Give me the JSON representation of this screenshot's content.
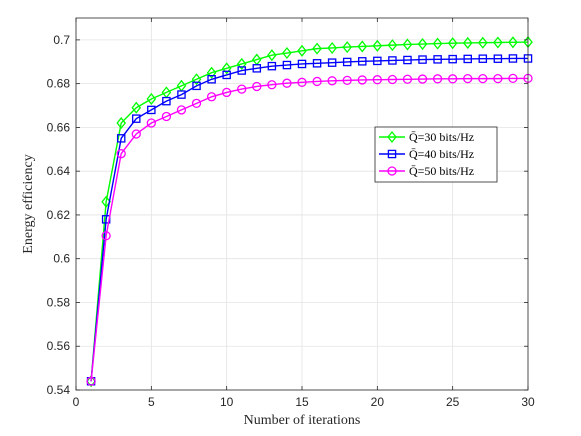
{
  "chart_data": {
    "type": "line",
    "xlabel": "Number of iterations",
    "ylabel": "Energy efficiency",
    "xlim": [
      0,
      30
    ],
    "ylim": [
      0.54,
      0.71
    ],
    "x_ticks": [
      0,
      5,
      10,
      15,
      20,
      25,
      30
    ],
    "y_ticks": [
      0.54,
      0.56,
      0.58,
      0.6,
      0.62,
      0.64,
      0.66,
      0.68,
      0.7
    ],
    "grid": true,
    "legend_position": "center-right",
    "x": [
      1,
      2,
      3,
      4,
      5,
      6,
      7,
      8,
      9,
      10,
      11,
      12,
      13,
      14,
      15,
      16,
      17,
      18,
      19,
      20,
      21,
      22,
      23,
      24,
      25,
      26,
      27,
      28,
      29,
      30
    ],
    "series": [
      {
        "name": "Q̄=30 bits/Hz",
        "color": "#00ff00",
        "marker": "diamond",
        "values": [
          0.544,
          0.626,
          0.662,
          0.669,
          0.673,
          0.676,
          0.679,
          0.682,
          0.685,
          0.687,
          0.689,
          0.691,
          0.693,
          0.694,
          0.695,
          0.696,
          0.6963,
          0.6967,
          0.697,
          0.6973,
          0.6976,
          0.6979,
          0.6981,
          0.6983,
          0.6985,
          0.6986,
          0.6987,
          0.6988,
          0.6989,
          0.699
        ]
      },
      {
        "name": "Q̄=40 bits/Hz",
        "color": "#0000ff",
        "marker": "square",
        "values": [
          0.544,
          0.618,
          0.655,
          0.664,
          0.668,
          0.672,
          0.675,
          0.679,
          0.682,
          0.684,
          0.686,
          0.687,
          0.688,
          0.6885,
          0.689,
          0.6893,
          0.6896,
          0.6899,
          0.6902,
          0.6904,
          0.6906,
          0.6908,
          0.691,
          0.6911,
          0.6912,
          0.6913,
          0.6914,
          0.6914,
          0.6915,
          0.6915
        ]
      },
      {
        "name": "Q̄=50 bits/Hz",
        "color": "#ff00ff",
        "marker": "circle",
        "values": [
          0.544,
          0.6105,
          0.648,
          0.657,
          0.662,
          0.665,
          0.668,
          0.671,
          0.674,
          0.676,
          0.6775,
          0.6787,
          0.6795,
          0.6802,
          0.6806,
          0.681,
          0.6813,
          0.6815,
          0.6817,
          0.6818,
          0.6819,
          0.682,
          0.6821,
          0.6822,
          0.6822,
          0.6823,
          0.6823,
          0.6823,
          0.6824,
          0.6824
        ]
      }
    ]
  }
}
